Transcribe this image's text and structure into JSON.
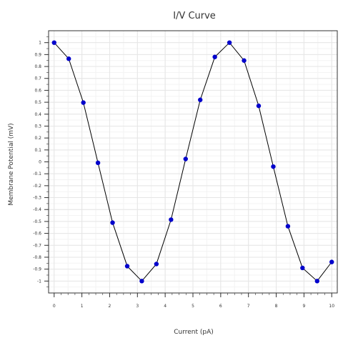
{
  "chart_data": {
    "type": "line",
    "title": "I/V Curve",
    "xlabel": "Current (pA)",
    "ylabel": "Membrane Potential (mV)",
    "xlim": [
      -0.2,
      10.2
    ],
    "ylim": [
      -1.1,
      1.1
    ],
    "x_ticks": [
      0,
      1,
      2,
      3,
      4,
      5,
      6,
      7,
      8,
      9,
      10
    ],
    "x_tick_labels": [
      "0",
      "1",
      "2",
      "3",
      "4",
      "5",
      "6",
      "7",
      "8",
      "9",
      "10"
    ],
    "y_ticks": [
      1,
      0.9,
      0.8,
      0.7,
      0.6,
      0.5,
      0.4,
      0.3,
      0.2,
      0.1,
      0,
      -0.1,
      -0.2,
      -0.3,
      -0.4,
      -0.5,
      -0.6,
      -0.7,
      -0.8,
      -0.9,
      -1
    ],
    "y_tick_labels": [
      "1",
      "0.9",
      "0.8",
      "0.7",
      "0.6",
      "0.5",
      "0.4",
      "0.3",
      "0.2",
      "0.1",
      "0",
      "-0.1",
      "-0.2",
      "-0.3",
      "-0.4",
      "-0.5",
      "-0.6",
      "-0.7",
      "-0.8",
      "-0.9",
      "-1"
    ],
    "grid": true,
    "line_color": "#000000",
    "marker_color": "#0000cc",
    "series": [
      {
        "x": [
          0,
          0.526,
          1.053,
          1.579,
          2.105,
          2.632,
          3.158,
          3.684,
          4.211,
          4.737,
          5.263,
          5.789,
          6.316,
          6.842,
          7.368,
          7.895,
          8.421,
          8.947,
          9.474,
          10
        ],
        "y": [
          1.0,
          0.865,
          0.497,
          -0.008,
          -0.51,
          -0.875,
          -1.0,
          -0.857,
          -0.485,
          0.024,
          0.52,
          0.88,
          1.0,
          0.85,
          0.47,
          -0.04,
          -0.54,
          -0.89,
          -1.0,
          -0.84
        ]
      }
    ]
  }
}
